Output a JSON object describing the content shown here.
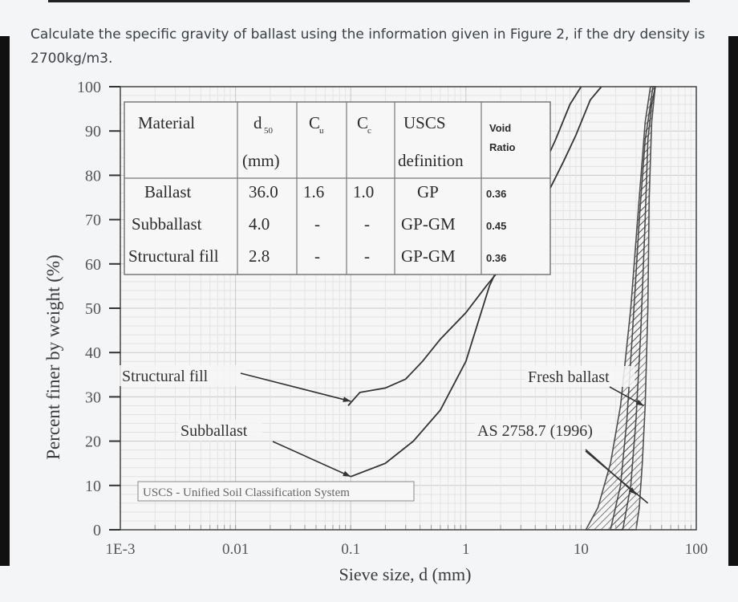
{
  "question": "Calculate the specific gravity of ballast using the information given in Figure 2, if the dry density is 2700kg/m3.",
  "chart_data": {
    "type": "line",
    "xlabel": "Sieve size, d (mm)",
    "ylabel": "Percent finer by weight (%)",
    "xscale": "log",
    "xlim": [
      0.001,
      100
    ],
    "ylim": [
      0,
      100
    ],
    "x_ticks": [
      "1E-3",
      "0.01",
      "0.1",
      "1",
      "10",
      "100"
    ],
    "y_ticks": [
      "0",
      "10",
      "20",
      "30",
      "40",
      "50",
      "60",
      "70",
      "80",
      "90",
      "100"
    ],
    "grid": true,
    "series": [
      {
        "name": "Structural fill",
        "points": [
          [
            0.095,
            28
          ],
          [
            0.12,
            31
          ],
          [
            0.2,
            32
          ],
          [
            0.3,
            34
          ],
          [
            0.42,
            38
          ],
          [
            0.6,
            43
          ],
          [
            1.0,
            49
          ],
          [
            1.5,
            55
          ],
          [
            2.5,
            62
          ],
          [
            4.5,
            73
          ],
          [
            7.0,
            83
          ],
          [
            9.0,
            89
          ],
          [
            12.0,
            97
          ],
          [
            15.0,
            100
          ]
        ]
      },
      {
        "name": "Subballast",
        "points": [
          [
            0.1,
            12
          ],
          [
            0.2,
            15
          ],
          [
            0.35,
            20
          ],
          [
            0.6,
            27
          ],
          [
            1.0,
            38
          ],
          [
            1.6,
            55
          ],
          [
            2.5,
            66
          ],
          [
            4.0,
            78
          ],
          [
            6.0,
            88
          ],
          [
            8.0,
            96
          ],
          [
            10.0,
            100
          ]
        ]
      },
      {
        "name": "Fresh ballast",
        "band": {
          "upper": [
            [
              18.0,
              0
            ],
            [
              22.0,
              10
            ],
            [
              25.0,
              25
            ],
            [
              28.0,
              45
            ],
            [
              32.0,
              70
            ],
            [
              36.0,
              88
            ],
            [
              40.0,
              96
            ],
            [
              42.0,
              100
            ]
          ],
          "lower": [
            [
              23.0,
              0
            ],
            [
              27.0,
              10
            ],
            [
              30.0,
              25
            ],
            [
              33.0,
              45
            ],
            [
              36.0,
              70
            ],
            [
              38.0,
              88
            ],
            [
              41.0,
              96
            ],
            [
              44.0,
              100
            ]
          ]
        }
      },
      {
        "name": "AS 2758.7 (1996)",
        "band": {
          "upper": [
            [
              11.0,
              0
            ],
            [
              14.0,
              5
            ],
            [
              18.0,
              15
            ],
            [
              22.0,
              28
            ],
            [
              27.0,
              50
            ],
            [
              32.0,
              75
            ],
            [
              36.0,
              92
            ],
            [
              40.0,
              100
            ]
          ],
          "lower": [
            [
              30.0,
              0
            ],
            [
              32.0,
              5
            ],
            [
              34.0,
              15
            ],
            [
              36.0,
              28
            ],
            [
              38.0,
              50
            ],
            [
              39.0,
              75
            ],
            [
              41.0,
              92
            ],
            [
              44.0,
              100
            ]
          ]
        }
      }
    ],
    "annotations": [
      {
        "text": "Structural fill",
        "target": [
          0.1,
          29
        ]
      },
      {
        "text": "Subballast",
        "target": [
          0.1,
          12
        ]
      },
      {
        "text": "Fresh ballast",
        "target": [
          35.0,
          28
        ]
      },
      {
        "text": "AS 2758.7 (1996)",
        "target": [
          30.0,
          8
        ]
      }
    ],
    "footnote": "USCS - Unified Soil Classification System",
    "table": {
      "headers": [
        "Material",
        "d",
        "C",
        "C",
        "USCS",
        "Void"
      ],
      "header_subs": [
        "",
        "50",
        "u",
        "c",
        "",
        ""
      ],
      "header_second": [
        "",
        "(mm)",
        "",
        "",
        "definition",
        "Ratio"
      ],
      "rows": [
        [
          "Ballast",
          "36.0",
          "1.6",
          "1.0",
          "GP",
          "0.36"
        ],
        [
          "Subballast",
          "4.0",
          "-",
          "-",
          "GP-GM",
          "0.45"
        ],
        [
          "Structural fill",
          "2.8",
          "-",
          "-",
          "GP-GM",
          "0.36"
        ]
      ]
    }
  }
}
